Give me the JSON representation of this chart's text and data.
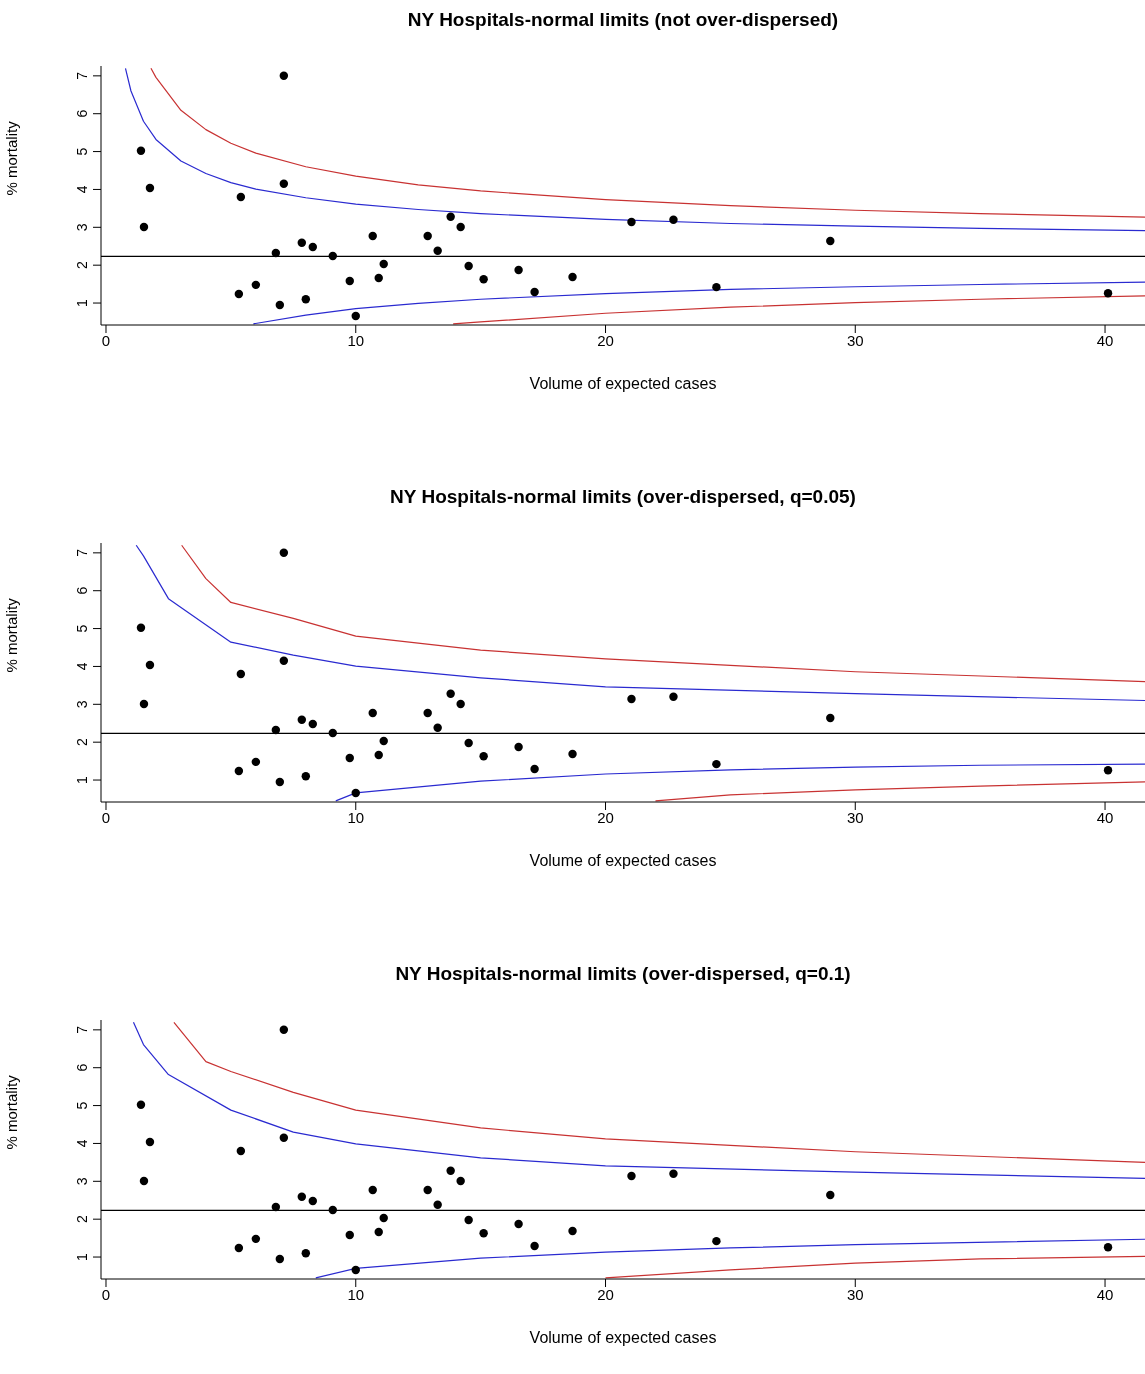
{
  "chart_data": [
    {
      "type": "scatter",
      "title": "NY Hospitals-normal limits (not over-dispersed)",
      "xlabel": "Volume of expected cases",
      "ylabel": "% mortality",
      "xlim": [
        -0.2,
        41.6
      ],
      "ylim": [
        0.42,
        7.26
      ],
      "xticks": [
        0,
        10,
        20,
        30,
        40
      ],
      "yticks": [
        1,
        2,
        3,
        4,
        5,
        6,
        7
      ],
      "grid": false,
      "legend": false,
      "ref_lines": [
        {
          "axis": "y",
          "value": 2.23,
          "color": "#000000"
        }
      ],
      "series": [
        {
          "type": "scatter",
          "color": "#000000",
          "marker": "circle",
          "x": [
            1.4,
            1.76,
            1.52,
            5.4,
            7.12,
            7.12,
            5.32,
            6.0,
            6.8,
            6.96,
            7.84,
            8.28,
            8.0,
            9.08,
            9.76,
            10.0,
            10.68,
            10.92,
            11.12,
            12.88,
            13.28,
            13.8,
            14.2,
            14.52,
            15.12,
            16.52,
            17.16,
            18.68,
            21.04,
            22.72,
            24.44,
            29.0,
            40.12
          ],
          "values": [
            5.02,
            4.04,
            3.01,
            3.8,
            7.0,
            4.15,
            1.24,
            1.48,
            2.32,
            0.95,
            2.59,
            2.48,
            1.1,
            2.24,
            1.58,
            0.66,
            2.77,
            1.66,
            2.03,
            2.77,
            2.38,
            3.28,
            3.01,
            1.98,
            1.63,
            1.87,
            1.29,
            1.69,
            3.14,
            3.2,
            1.42,
            2.64,
            1.26
          ]
        },
        {
          "type": "line",
          "color": "#2a2ad0",
          "marker": "none",
          "x": [
            0.78,
            1,
            1.5,
            2,
            3,
            4,
            5,
            6,
            8,
            10,
            12.5,
            15,
            20,
            25,
            30,
            35,
            41.6
          ],
          "values": [
            7.2,
            6.6,
            5.8,
            5.32,
            4.75,
            4.42,
            4.18,
            4.01,
            3.78,
            3.61,
            3.47,
            3.36,
            3.21,
            3.1,
            3.03,
            2.97,
            2.91
          ]
        },
        {
          "type": "line",
          "color": "#2a2ad0",
          "marker": "none",
          "x": [
            5.9,
            8,
            10,
            12.5,
            15,
            20,
            25,
            30,
            35,
            41.6
          ],
          "values": [
            0.45,
            0.68,
            0.85,
            0.99,
            1.1,
            1.25,
            1.36,
            1.43,
            1.49,
            1.55
          ]
        },
        {
          "type": "line",
          "color": "#c83232",
          "marker": "none",
          "x": [
            1.8,
            2,
            3,
            4,
            5,
            6,
            8,
            10,
            12.5,
            15,
            20,
            25,
            30,
            35,
            41.6
          ],
          "values": [
            7.2,
            6.96,
            6.09,
            5.58,
            5.22,
            4.96,
            4.6,
            4.35,
            4.12,
            3.96,
            3.73,
            3.57,
            3.45,
            3.36,
            3.27
          ]
        },
        {
          "type": "line",
          "color": "#c83232",
          "marker": "none",
          "x": [
            13.9,
            15,
            20,
            25,
            30,
            35,
            41.6
          ],
          "values": [
            0.45,
            0.5,
            0.73,
            0.89,
            1.01,
            1.1,
            1.19
          ]
        }
      ]
    },
    {
      "type": "scatter",
      "title": "NY Hospitals-normal limits (over-dispersed, q=0.05)",
      "xlabel": "Volume of expected cases",
      "ylabel": "% mortality",
      "xlim": [
        -0.2,
        41.6
      ],
      "ylim": [
        0.42,
        7.26
      ],
      "xticks": [
        0,
        10,
        20,
        30,
        40
      ],
      "yticks": [
        1,
        2,
        3,
        4,
        5,
        6,
        7
      ],
      "grid": false,
      "legend": false,
      "ref_lines": [
        {
          "axis": "y",
          "value": 2.23,
          "color": "#000000"
        }
      ],
      "series": [
        {
          "type": "scatter",
          "color": "#000000",
          "marker": "circle",
          "x": [
            1.4,
            1.76,
            1.52,
            5.4,
            7.12,
            7.12,
            5.32,
            6.0,
            6.8,
            6.96,
            7.84,
            8.28,
            8.0,
            9.08,
            9.76,
            10.0,
            10.68,
            10.92,
            11.12,
            12.88,
            13.28,
            13.8,
            14.2,
            14.52,
            15.12,
            16.52,
            17.16,
            18.68,
            21.04,
            22.72,
            24.44,
            29.0,
            40.12
          ],
          "values": [
            5.02,
            4.04,
            3.01,
            3.8,
            7.0,
            4.15,
            1.24,
            1.48,
            2.32,
            0.95,
            2.59,
            2.48,
            1.1,
            2.24,
            1.58,
            0.66,
            2.77,
            1.66,
            2.03,
            2.77,
            2.38,
            3.28,
            3.01,
            1.98,
            1.63,
            1.87,
            1.29,
            1.69,
            3.14,
            3.2,
            1.42,
            2.64,
            1.26
          ]
        },
        {
          "type": "line",
          "color": "#2a2ad0",
          "marker": "none",
          "x": [
            1.21,
            1.5,
            2.5,
            5,
            7.5,
            10,
            15,
            20,
            30,
            41.6
          ],
          "values": [
            7.2,
            6.92,
            5.79,
            4.64,
            4.3,
            4.01,
            3.7,
            3.46,
            3.28,
            3.1
          ]
        },
        {
          "type": "line",
          "color": "#2a2ad0",
          "marker": "none",
          "x": [
            9.2,
            10,
            15,
            20,
            25,
            30,
            35,
            41.6
          ],
          "values": [
            0.45,
            0.66,
            0.97,
            1.16,
            1.27,
            1.34,
            1.39,
            1.42
          ]
        },
        {
          "type": "line",
          "color": "#c83232",
          "marker": "none",
          "x": [
            3.03,
            4,
            5,
            7.5,
            10,
            15,
            20,
            30,
            41.6
          ],
          "values": [
            7.2,
            6.32,
            5.69,
            5.27,
            4.8,
            4.43,
            4.2,
            3.86,
            3.6
          ]
        },
        {
          "type": "line",
          "color": "#c83232",
          "marker": "none",
          "x": [
            22,
            25,
            30,
            35,
            41.6
          ],
          "values": [
            0.45,
            0.61,
            0.74,
            0.84,
            0.95
          ]
        }
      ]
    },
    {
      "type": "scatter",
      "title": "NY Hospitals-normal limits (over-dispersed, q=0.1)",
      "xlabel": "Volume of expected cases",
      "ylabel": "% mortality",
      "xlim": [
        -0.2,
        41.6
      ],
      "ylim": [
        0.42,
        7.26
      ],
      "xticks": [
        0,
        10,
        20,
        30,
        40
      ],
      "yticks": [
        1,
        2,
        3,
        4,
        5,
        6,
        7
      ],
      "grid": false,
      "legend": false,
      "ref_lines": [
        {
          "axis": "y",
          "value": 2.23,
          "color": "#000000"
        }
      ],
      "series": [
        {
          "type": "scatter",
          "color": "#000000",
          "marker": "circle",
          "x": [
            1.4,
            1.76,
            1.52,
            5.4,
            7.12,
            7.12,
            5.32,
            6.0,
            6.8,
            6.96,
            7.84,
            8.28,
            8.0,
            9.08,
            9.76,
            10.0,
            10.68,
            10.92,
            11.12,
            12.88,
            13.28,
            13.8,
            14.2,
            14.52,
            15.12,
            16.52,
            17.16,
            18.68,
            21.04,
            22.72,
            24.44,
            29.0,
            40.12
          ],
          "values": [
            5.02,
            4.04,
            3.01,
            3.8,
            7.0,
            4.15,
            1.24,
            1.48,
            2.32,
            0.95,
            2.59,
            2.48,
            1.1,
            2.24,
            1.58,
            0.66,
            2.77,
            1.66,
            2.03,
            2.77,
            2.38,
            3.28,
            3.01,
            1.98,
            1.63,
            1.87,
            1.29,
            1.69,
            3.14,
            3.2,
            1.42,
            2.64,
            1.26
          ]
        },
        {
          "type": "line",
          "color": "#2a2ad0",
          "marker": "none",
          "x": [
            1.1,
            1.5,
            2.5,
            5,
            7.5,
            10,
            15,
            20,
            30,
            41.6
          ],
          "values": [
            7.2,
            6.61,
            5.82,
            4.88,
            4.3,
            3.99,
            3.62,
            3.41,
            3.24,
            3.08
          ]
        },
        {
          "type": "line",
          "color": "#2a2ad0",
          "marker": "none",
          "x": [
            8.4,
            10,
            15,
            20,
            25,
            30,
            41.6
          ],
          "values": [
            0.45,
            0.7,
            0.97,
            1.13,
            1.24,
            1.33,
            1.47
          ]
        },
        {
          "type": "line",
          "color": "#c83232",
          "marker": "none",
          "x": [
            2.72,
            4,
            5,
            7.5,
            10,
            15,
            20,
            30,
            41.6
          ],
          "values": [
            7.2,
            6.16,
            5.9,
            5.35,
            4.88,
            4.41,
            4.12,
            3.78,
            3.5
          ]
        },
        {
          "type": "line",
          "color": "#c83232",
          "marker": "none",
          "x": [
            20,
            25,
            30,
            35,
            41.6
          ],
          "values": [
            0.45,
            0.66,
            0.84,
            0.95,
            1.02
          ]
        }
      ]
    }
  ]
}
